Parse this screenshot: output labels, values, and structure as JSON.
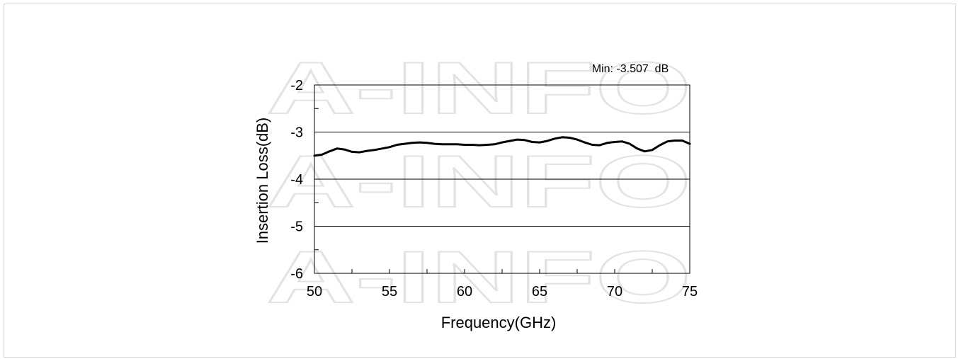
{
  "watermark": "A-INFO",
  "chart_data": {
    "type": "line",
    "title": "",
    "xlabel": "Frequency(GHz)",
    "ylabel": "Insertion Loss(dB)",
    "xlim": [
      50,
      75
    ],
    "ylim": [
      -6,
      -2
    ],
    "xticks": [
      50,
      55,
      60,
      65,
      70,
      75
    ],
    "yticks": [
      -2,
      -3,
      -4,
      -5,
      -6
    ],
    "grid": "horizontal major lines",
    "annotation": "Min: -3.507  dB",
    "series": [
      {
        "color": "#000000",
        "x": [
          50,
          50.5,
          51,
          51.5,
          52,
          52.5,
          53,
          53.5,
          54,
          54.5,
          55,
          55.5,
          56,
          56.5,
          57,
          57.5,
          58,
          58.5,
          59,
          59.5,
          60,
          60.5,
          61,
          61.5,
          62,
          62.5,
          63,
          63.5,
          64,
          64.5,
          65,
          65.5,
          66,
          66.5,
          67,
          67.5,
          68,
          68.5,
          69,
          69.5,
          70,
          70.5,
          71,
          71.5,
          72,
          72.5,
          73,
          73.5,
          74,
          74.5,
          75
        ],
        "y": [
          -3.5,
          -3.48,
          -3.41,
          -3.35,
          -3.37,
          -3.42,
          -3.43,
          -3.4,
          -3.38,
          -3.35,
          -3.32,
          -3.27,
          -3.25,
          -3.23,
          -3.22,
          -3.23,
          -3.25,
          -3.26,
          -3.26,
          -3.26,
          -3.27,
          -3.27,
          -3.28,
          -3.27,
          -3.26,
          -3.22,
          -3.19,
          -3.16,
          -3.17,
          -3.21,
          -3.22,
          -3.19,
          -3.14,
          -3.11,
          -3.12,
          -3.16,
          -3.22,
          -3.27,
          -3.28,
          -3.23,
          -3.21,
          -3.2,
          -3.25,
          -3.35,
          -3.41,
          -3.38,
          -3.28,
          -3.2,
          -3.18,
          -3.18,
          -3.25
        ]
      }
    ]
  }
}
